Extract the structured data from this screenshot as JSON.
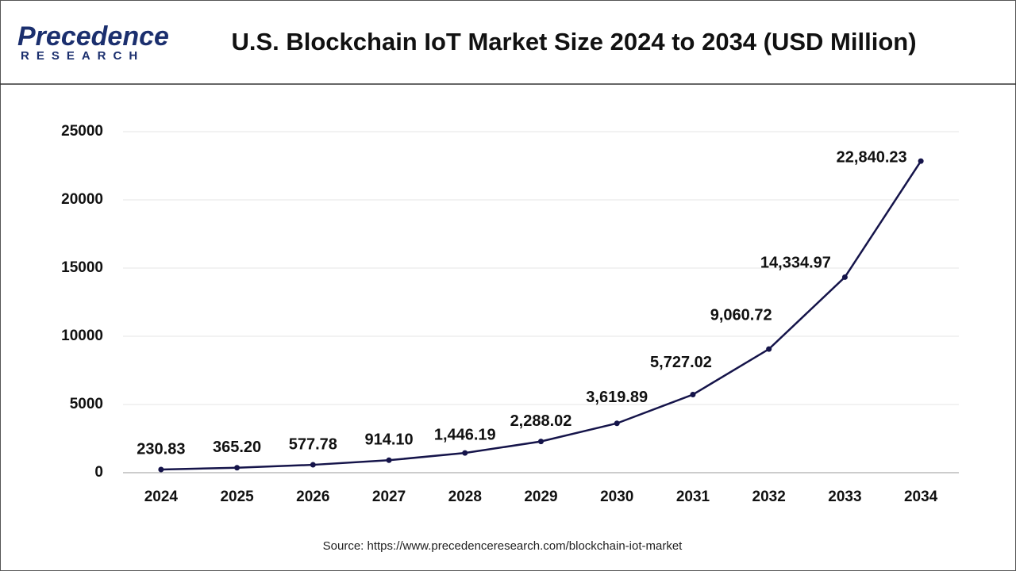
{
  "logo": {
    "name": "Precedence",
    "sub": "RESEARCH"
  },
  "chart_data": {
    "type": "line",
    "title": "U.S. Blockchain IoT Market Size 2024 to 2034 (USD Million)",
    "source": "Source: https://www.precedenceresearch.com/blockchain-iot-market",
    "categories": [
      "2024",
      "2025",
      "2026",
      "2027",
      "2028",
      "2029",
      "2030",
      "2031",
      "2032",
      "2033",
      "2034"
    ],
    "series": [
      {
        "name": "U.S. Blockchain IoT Market Size",
        "color": "#15144a",
        "values": [
          230.83,
          365.2,
          577.78,
          914.1,
          1446.19,
          2288.02,
          3619.89,
          5727.02,
          9060.72,
          14334.97,
          22840.23
        ],
        "value_labels": [
          "230.83",
          "365.20",
          "577.78",
          "914.10",
          "1,446.19",
          "2,288.02",
          "3,619.89",
          "5,727.02",
          "9,060.72",
          "14,334.97",
          "22,840.23"
        ]
      }
    ],
    "ylim": [
      0,
      25000
    ],
    "yticks": [
      0,
      5000,
      10000,
      15000,
      20000,
      25000
    ],
    "grid": true
  }
}
